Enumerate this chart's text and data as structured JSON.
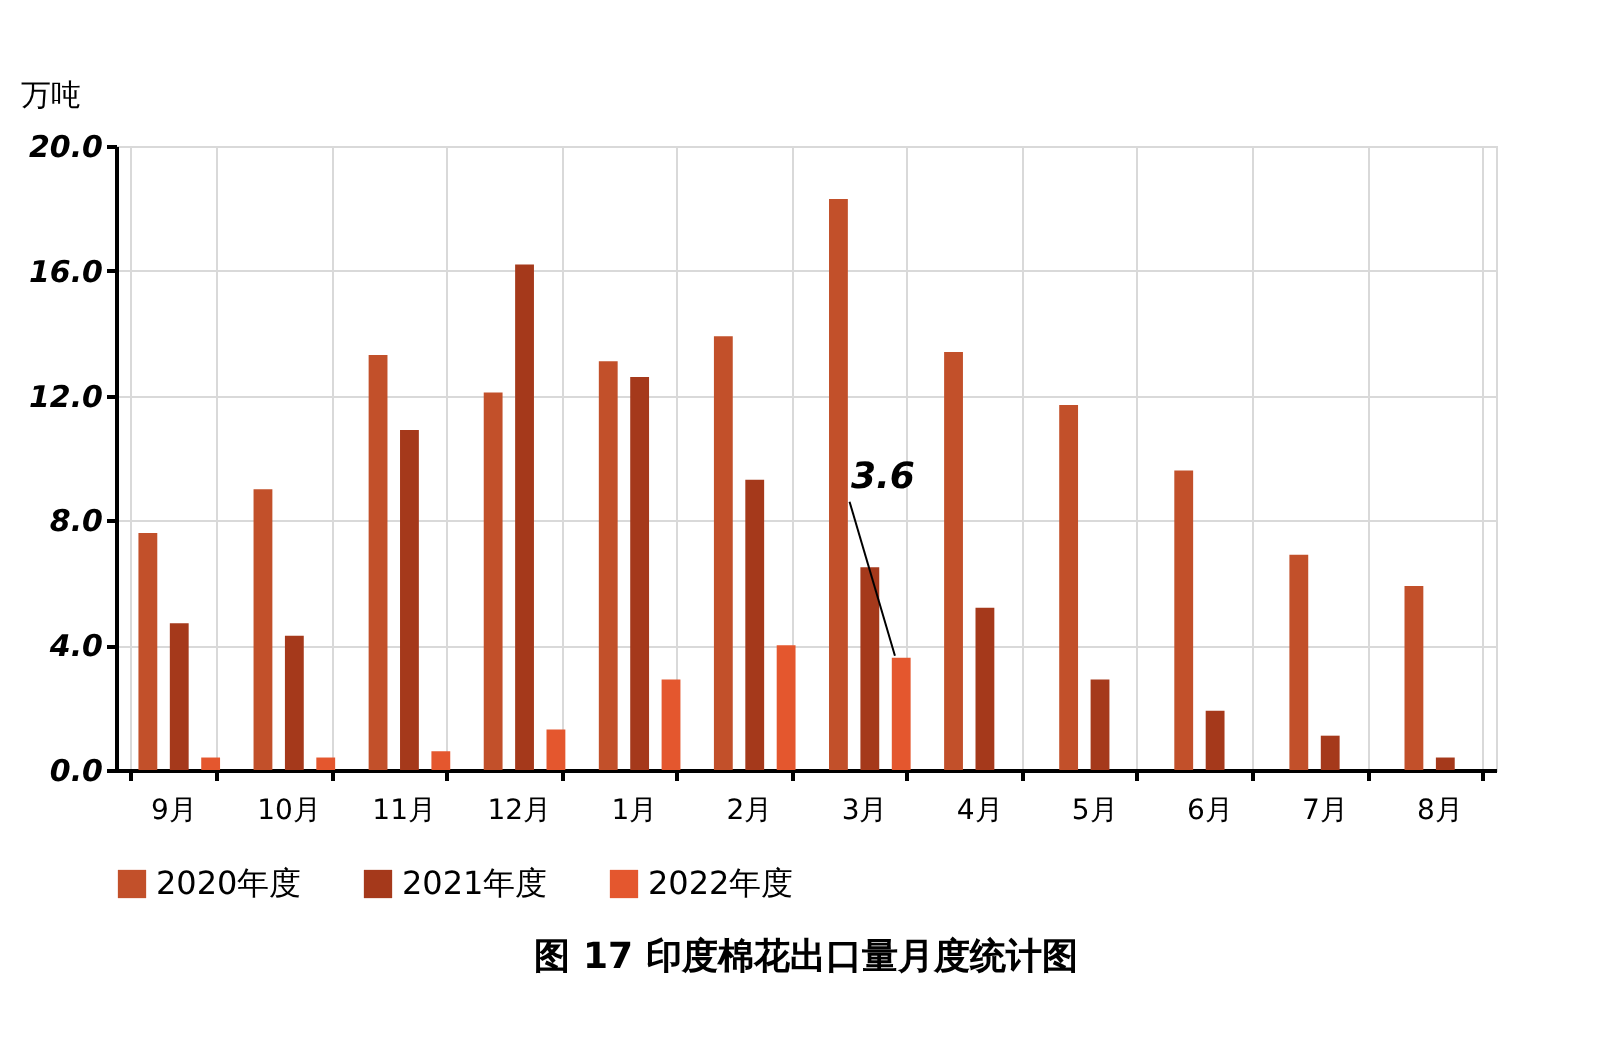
{
  "chart_data": {
    "type": "bar",
    "title": "图 17 印度棉花出口量月度统计图",
    "ylabel": "万吨",
    "categories": [
      "9月",
      "10月",
      "11月",
      "12月",
      "1月",
      "2月",
      "3月",
      "4月",
      "5月",
      "6月",
      "7月",
      "8月"
    ],
    "series": [
      {
        "name": "2020年度",
        "color": "#c2502a",
        "values": [
          7.6,
          9.0,
          13.3,
          12.1,
          13.1,
          13.9,
          18.3,
          13.4,
          11.7,
          9.6,
          6.9,
          5.9
        ]
      },
      {
        "name": "2021年度",
        "color": "#a5391b",
        "values": [
          4.7,
          4.3,
          10.9,
          16.2,
          12.6,
          9.3,
          6.5,
          5.2,
          2.9,
          1.9,
          1.1,
          0.4
        ]
      },
      {
        "name": "2022年度",
        "color": "#e4572e",
        "values": [
          0.4,
          0.4,
          0.6,
          1.3,
          2.9,
          4.0,
          3.6,
          null,
          null,
          null,
          null,
          null
        ],
        "value_labels": [
          null,
          null,
          null,
          null,
          null,
          null,
          "3.6",
          null,
          null,
          null,
          null,
          null
        ]
      }
    ],
    "ylim": [
      0,
      20
    ],
    "yticks": [
      {
        "value": 0,
        "label": "0.0"
      },
      {
        "value": 4,
        "label": "4.0"
      },
      {
        "value": 8,
        "label": "8.0"
      },
      {
        "value": 12,
        "label": "12.0"
      },
      {
        "value": 16,
        "label": "16.0"
      },
      {
        "value": 20,
        "label": "20.0"
      }
    ],
    "grid": true,
    "legend": "bottom"
  }
}
